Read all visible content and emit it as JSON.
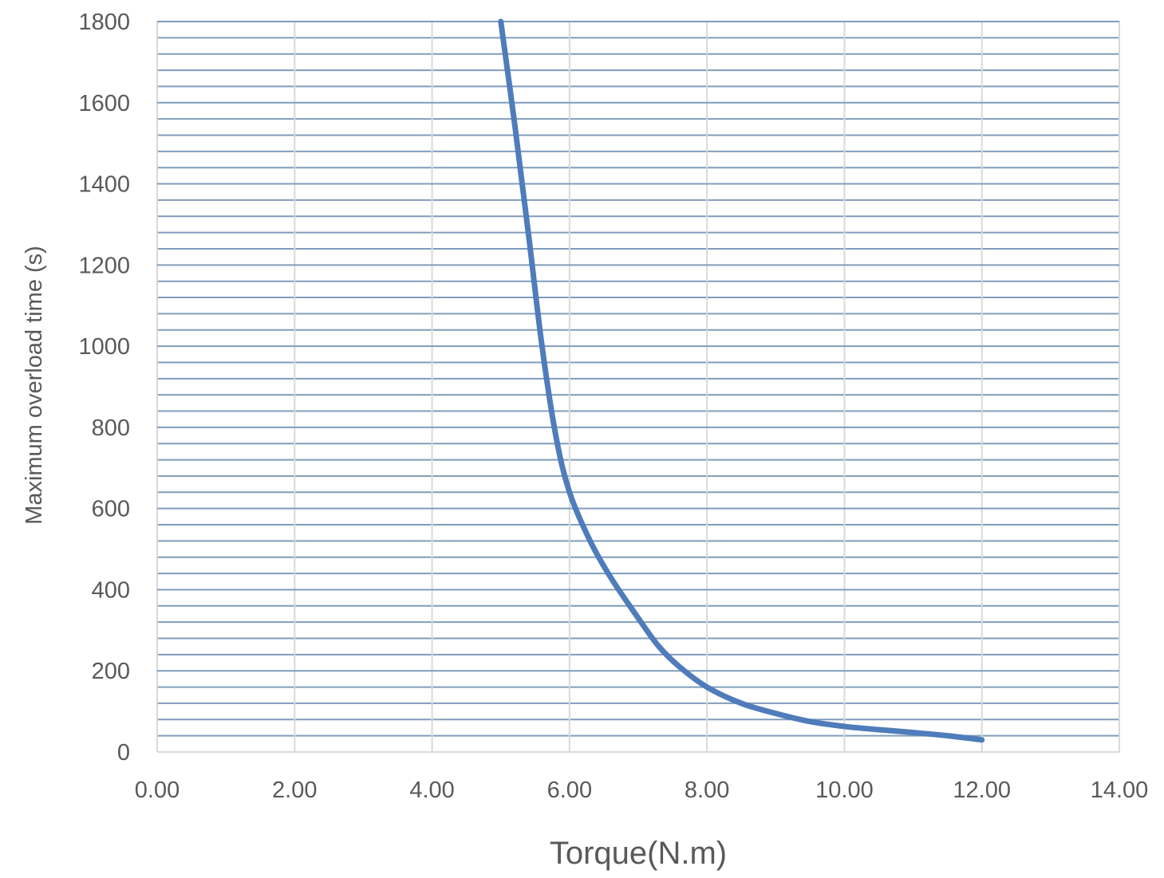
{
  "chart_data": {
    "type": "line",
    "title": "",
    "xlabel": "Torque(N.m)",
    "ylabel": "Maximum overload time (s)",
    "xlim": [
      0,
      14
    ],
    "ylim": [
      0,
      1800
    ],
    "xticks": [
      "0.00",
      "2.00",
      "4.00",
      "6.00",
      "8.00",
      "10.00",
      "12.00",
      "14.00"
    ],
    "yticks": [
      "0",
      "200",
      "400",
      "600",
      "800",
      "1000",
      "1200",
      "1400",
      "1600",
      "1800"
    ],
    "grid": true,
    "minor_y_gridlines_step": 40,
    "series": [
      {
        "color": "#4f7cba",
        "x": [
          5.0,
          5.2,
          5.4,
          5.6,
          5.8,
          6.0,
          6.3,
          6.6,
          7.0,
          7.3,
          7.6,
          8.0,
          8.5,
          9.0,
          9.5,
          10.0,
          10.5,
          11.0,
          11.5,
          12.0
        ],
        "y": [
          1800,
          1550,
          1280,
          1000,
          780,
          640,
          520,
          430,
          330,
          260,
          210,
          160,
          120,
          95,
          75,
          63,
          55,
          48,
          40,
          30
        ]
      }
    ]
  },
  "colors": {
    "major_grid": "#d9d9d9",
    "minor_grid": "#7f9dbb",
    "tick_text": "#595959"
  }
}
